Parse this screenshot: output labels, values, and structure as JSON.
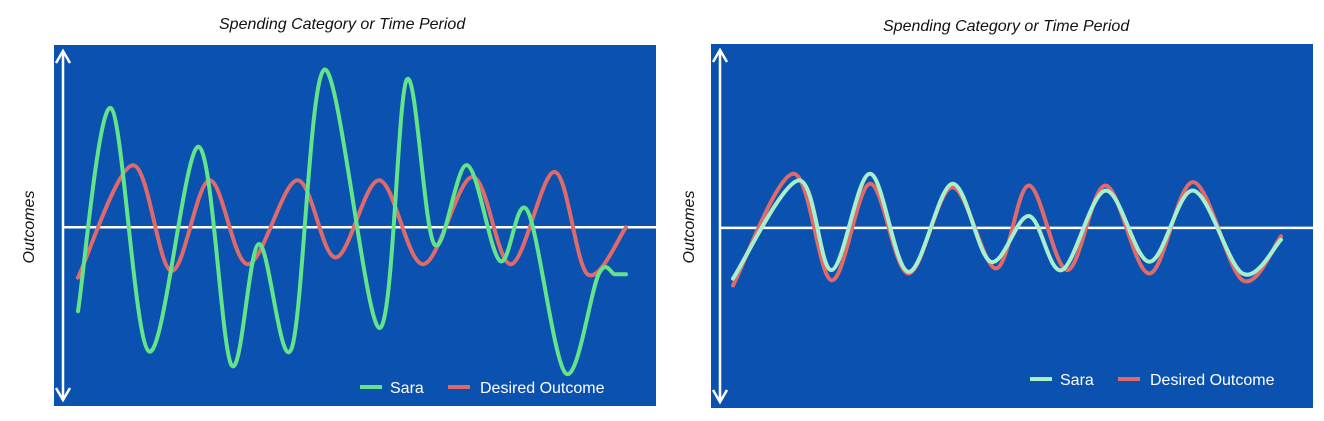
{
  "colors": {
    "plot_bg": "#0B52B0",
    "sara": "#63E48A",
    "sara_right": "#A8F0CC",
    "desired": "#E06A6A",
    "axis": "#ffffff"
  },
  "chart_data": [
    {
      "type": "line",
      "title": "Spending Category or Time Period",
      "ylabel": "Outcomes",
      "xlim": [
        0,
        1
      ],
      "ylim": [
        -1,
        1
      ],
      "legend_position": "bottom-right",
      "series": [
        {
          "name": "Sara",
          "x": [
            0,
            0.06,
            0.13,
            0.22,
            0.28,
            0.33,
            0.39,
            0.45,
            0.55,
            0.6,
            0.65,
            0.71,
            0.77,
            0.82,
            0.89,
            0.95,
            0.98,
            1.0
          ],
          "y": [
            -0.5,
            0.71,
            -0.74,
            0.48,
            -0.82,
            -0.1,
            -0.72,
            0.94,
            -0.6,
            0.88,
            -0.1,
            0.37,
            -0.2,
            0.1,
            -0.87,
            -0.28,
            -0.28,
            -0.28
          ]
        },
        {
          "name": "Desired Outcome",
          "x": [
            0,
            0.1,
            0.17,
            0.24,
            0.31,
            0.4,
            0.47,
            0.55,
            0.63,
            0.72,
            0.79,
            0.87,
            0.93,
            1.0
          ],
          "y": [
            -0.3,
            0.37,
            -0.26,
            0.28,
            -0.22,
            0.28,
            -0.18,
            0.28,
            -0.22,
            0.3,
            -0.22,
            0.33,
            -0.28,
            0.0
          ]
        }
      ]
    },
    {
      "type": "line",
      "title": "Spending Category or Time Period",
      "ylabel": "Outcomes",
      "xlim": [
        0,
        1
      ],
      "ylim": [
        -1,
        1
      ],
      "legend_position": "bottom-right",
      "series": [
        {
          "name": "Sara",
          "x": [
            0,
            0.12,
            0.18,
            0.25,
            0.32,
            0.4,
            0.47,
            0.54,
            0.6,
            0.68,
            0.76,
            0.84,
            0.93,
            1.0
          ],
          "y": [
            -0.3,
            0.28,
            -0.25,
            0.32,
            -0.26,
            0.26,
            -0.2,
            0.07,
            -0.25,
            0.22,
            -0.2,
            0.22,
            -0.27,
            -0.07
          ]
        },
        {
          "name": "Desired Outcome",
          "x": [
            0,
            0.11,
            0.18,
            0.25,
            0.32,
            0.4,
            0.48,
            0.54,
            0.61,
            0.68,
            0.76,
            0.84,
            0.93,
            1.0
          ],
          "y": [
            -0.34,
            0.32,
            -0.31,
            0.26,
            -0.27,
            0.24,
            -0.24,
            0.25,
            -0.25,
            0.25,
            -0.27,
            0.27,
            -0.31,
            -0.05
          ]
        }
      ]
    }
  ]
}
